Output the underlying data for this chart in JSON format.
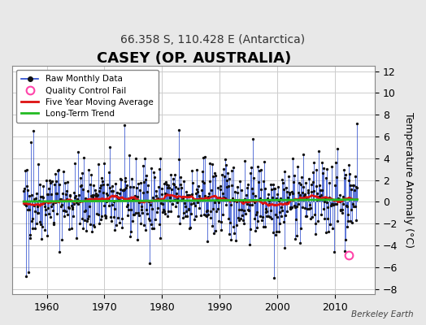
{
  "title": "CASEY (OP. AUSTRALIA)",
  "subtitle": "66.358 S, 110.428 E (Antarctica)",
  "ylabel": "Temperature Anomaly (°C)",
  "credit": "Berkeley Earth",
  "xlim": [
    1954,
    2017
  ],
  "ylim": [
    -8.5,
    12.5
  ],
  "yticks": [
    -8,
    -6,
    -4,
    -2,
    0,
    2,
    4,
    6,
    8,
    10,
    12
  ],
  "xticks": [
    1960,
    1970,
    1980,
    1990,
    2000,
    2010
  ],
  "x_start": 1956.0,
  "n_months": 696,
  "background_color": "#e8e8e8",
  "plot_bg_color": "#ffffff",
  "raw_color": "#2244cc",
  "dot_color": "#111111",
  "ma_color": "#dd1111",
  "trend_color": "#22bb22",
  "qc_color": "#ff44aa",
  "qc_x": 2012.5,
  "qc_y": -4.9,
  "trend_slope": 0.003,
  "trend_intercept": 0.18,
  "grid_color": "#cccccc",
  "title_fontsize": 13,
  "subtitle_fontsize": 10,
  "label_fontsize": 9,
  "tick_fontsize": 9
}
